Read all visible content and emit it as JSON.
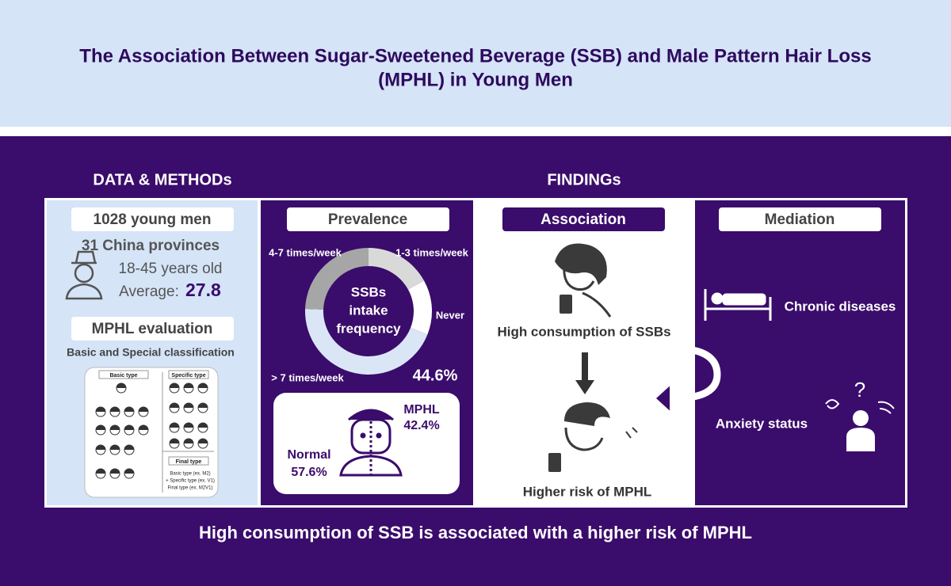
{
  "header": {
    "title_lines": [
      "The Association Between Sugar-Sweetened Beverage (SSB) and Male Pattern Hair Loss",
      "(MPHL) in Young Men"
    ]
  },
  "sections": {
    "data_methods": "DATA & METHODs",
    "findings": "FINDINGs"
  },
  "data_methods": {
    "sample": "1028 young men",
    "region": "31 China provinces",
    "age": "18-45 years old",
    "average_label": "Average:",
    "average_value": "27.8",
    "evaluation": "MPHL evaluation",
    "classification": "Basic and Special classification",
    "figure": {
      "basic": "Basic type",
      "specific": "Specific type",
      "final": "Final type",
      "rules": [
        "Basic type (ex. M2)",
        "+ Specific type (ex. V1)",
        "Final type (ex. M2V1)"
      ]
    }
  },
  "prevalence": {
    "title": "Prevalence",
    "donut": {
      "center": [
        "SSBs",
        "intake",
        "frequency"
      ],
      "categories": [
        "1-3 times/week",
        "Never",
        "> 7 times/week",
        "4-7 times/week"
      ],
      "values": [
        17,
        14,
        44.6,
        24.4
      ],
      "value_labels": [
        null,
        null,
        "44.6%",
        null
      ],
      "colors": [
        "#d9d9d9",
        "#ffffff",
        "#dae6f6",
        "#a6a6a6"
      ]
    },
    "mphl": {
      "label": "MPHL",
      "value": "42.4%"
    },
    "normal": {
      "label": "Normal",
      "value": "57.6%"
    }
  },
  "association": {
    "title": "Association",
    "exposure": "High consumption of SSBs",
    "outcome": "Higher risk of MPHL"
  },
  "mediation": {
    "title": "Mediation",
    "mediators": [
      "Chronic diseases",
      "Anxiety status"
    ]
  },
  "conclusion": "High consumption of SSB is associated with a higher risk of MPHL"
}
